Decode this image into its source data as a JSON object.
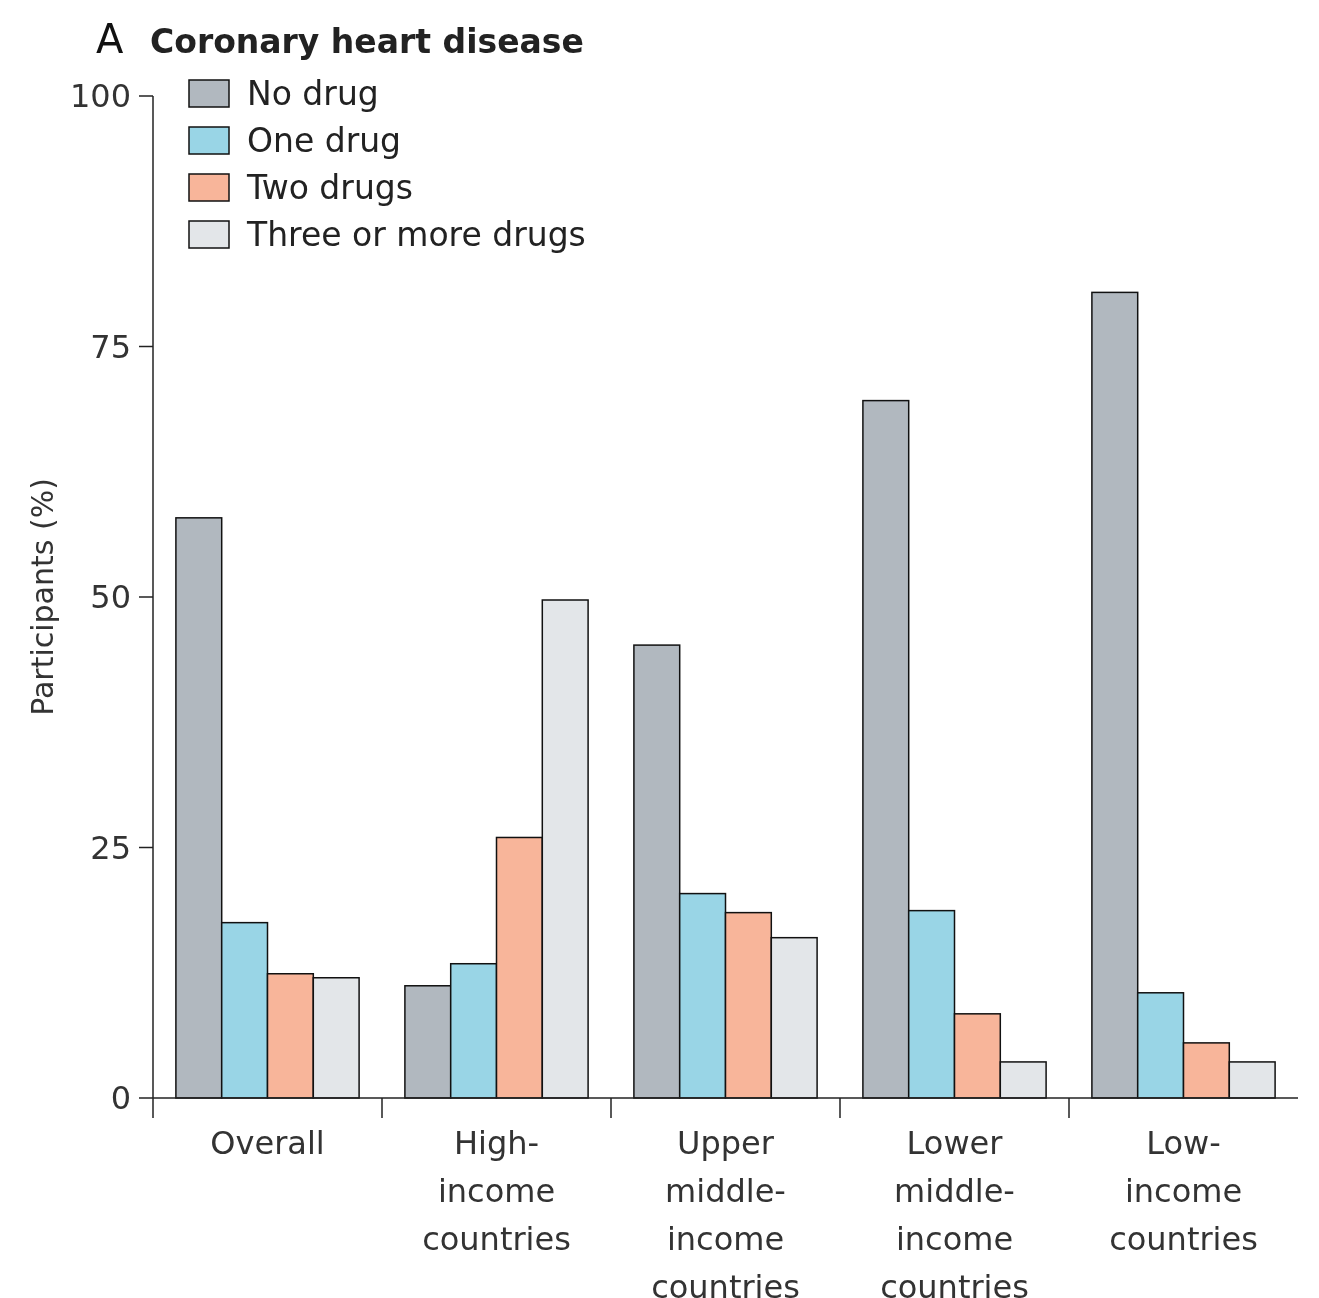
{
  "chart_data": {
    "type": "bar",
    "title": "Coronary heart disease",
    "annotations": [
      "A"
    ],
    "ylabel": "Participants (%)",
    "categories": [
      "Overall",
      "High-income countries",
      "Upper middle-income countries",
      "Lower middle-income countries",
      "Low-income countries"
    ],
    "series": [
      {
        "name": "No drug",
        "color": "#b1b8bf",
        "values": [
          57.9,
          11.2,
          45.2,
          69.6,
          80.4
        ]
      },
      {
        "name": "One drug",
        "color": "#99d5e6",
        "values": [
          17.5,
          13.4,
          20.4,
          18.7,
          10.5
        ]
      },
      {
        "name": "Two drugs",
        "color": "#f8b59a",
        "values": [
          12.4,
          26,
          18.5,
          8.4,
          5.5
        ]
      },
      {
        "name": "Three or more drugs",
        "color": "#e3e6e9",
        "values": [
          12,
          49.7,
          16,
          3.6,
          3.6
        ]
      }
    ],
    "ylim": [
      0,
      100
    ],
    "yticks": [
      0,
      25,
      50,
      75,
      100
    ],
    "grid": false,
    "legend": "top left"
  }
}
